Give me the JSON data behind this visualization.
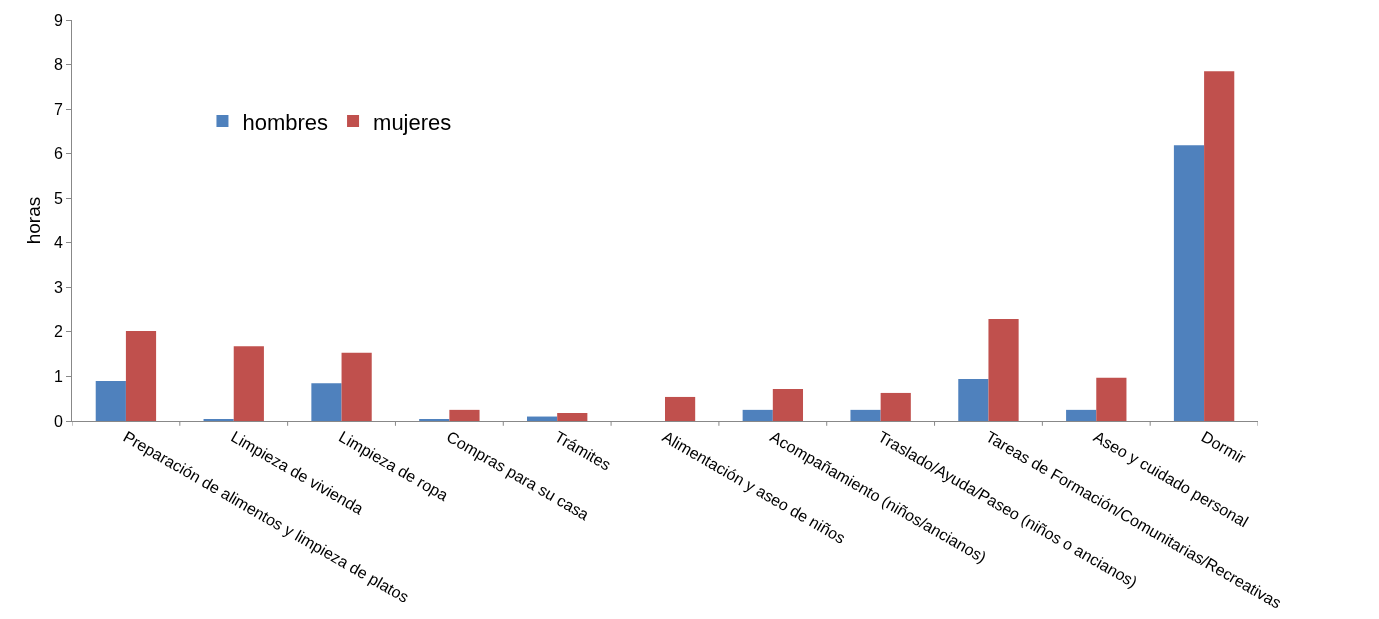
{
  "chart_data": {
    "type": "bar",
    "ylabel": "horas",
    "categories": [
      "Preparación de alimentos y limpieza de platos",
      "Limpieza de vivienda",
      "Limpieza de ropa",
      "Compras para su casa",
      "Trámites",
      "Alimentación y aseo de niños",
      "Acompañamiento (niños/ancianos)",
      "Traslado/Ayuda/Paseo (niños o ancianos)",
      "Tareas de Formación/Comunitarias/Recreativas",
      "Aseo y cuidado personal",
      "Dormir"
    ],
    "series": [
      {
        "name": "hombres",
        "color": "#4f81bd",
        "values": [
          0.9,
          0.04,
          0.85,
          0.04,
          0.1,
          0,
          0.25,
          0.25,
          0.94,
          0.25,
          6.19
        ]
      },
      {
        "name": "mujeres",
        "color": "#c0504d",
        "values": [
          2.02,
          1.68,
          1.53,
          0.25,
          0.18,
          0.54,
          0.72,
          0.63,
          2.29,
          0.97,
          7.85
        ]
      }
    ],
    "ylim": [
      0,
      9
    ],
    "yticks": [
      0,
      1,
      2,
      3,
      4,
      5,
      6,
      7,
      8,
      9
    ],
    "legend": "top left"
  }
}
